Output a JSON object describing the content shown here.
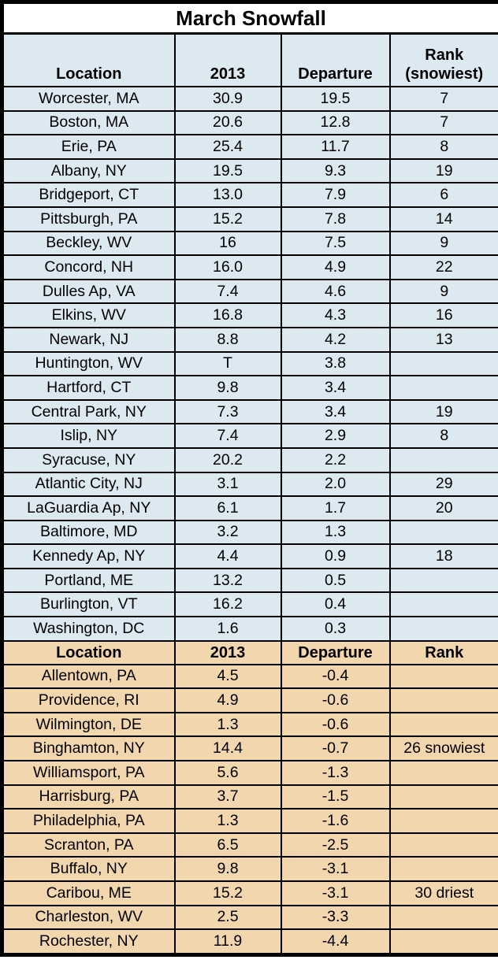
{
  "title": "March Snowfall",
  "colors": {
    "above_bg": "#dde9f1",
    "below_bg": "#f2d6ae",
    "border": "#000000",
    "text": "#000000",
    "title_bg": "#ffffff"
  },
  "chart_data": {
    "type": "table",
    "title": "March Snowfall",
    "header_above": {
      "location": "Location",
      "year": "2013",
      "departure": "Departure",
      "rank_line1": "Rank",
      "rank_line2": "(snowiest)"
    },
    "rows_above": [
      {
        "location": "Worcester, MA",
        "year": "30.9",
        "departure": "19.5",
        "rank": "7"
      },
      {
        "location": "Boston, MA",
        "year": "20.6",
        "departure": "12.8",
        "rank": "7"
      },
      {
        "location": "Erie, PA",
        "year": "25.4",
        "departure": "11.7",
        "rank": "8"
      },
      {
        "location": "Albany, NY",
        "year": "19.5",
        "departure": "9.3",
        "rank": "19"
      },
      {
        "location": "Bridgeport, CT",
        "year": "13.0",
        "departure": "7.9",
        "rank": "6"
      },
      {
        "location": "Pittsburgh, PA",
        "year": "15.2",
        "departure": "7.8",
        "rank": "14"
      },
      {
        "location": "Beckley, WV",
        "year": "16",
        "departure": "7.5",
        "rank": "9"
      },
      {
        "location": "Concord, NH",
        "year": "16.0",
        "departure": "4.9",
        "rank": "22"
      },
      {
        "location": "Dulles Ap, VA",
        "year": "7.4",
        "departure": "4.6",
        "rank": "9"
      },
      {
        "location": "Elkins, WV",
        "year": "16.8",
        "departure": "4.3",
        "rank": "16"
      },
      {
        "location": "Newark, NJ",
        "year": "8.8",
        "departure": "4.2",
        "rank": "13"
      },
      {
        "location": "Huntington, WV",
        "year": "T",
        "departure": "3.8",
        "rank": ""
      },
      {
        "location": "Hartford, CT",
        "year": "9.8",
        "departure": "3.4",
        "rank": ""
      },
      {
        "location": "Central Park, NY",
        "year": "7.3",
        "departure": "3.4",
        "rank": "19"
      },
      {
        "location": "Islip, NY",
        "year": "7.4",
        "departure": "2.9",
        "rank": "8"
      },
      {
        "location": "Syracuse, NY",
        "year": "20.2",
        "departure": "2.2",
        "rank": ""
      },
      {
        "location": "Atlantic City, NJ",
        "year": "3.1",
        "departure": "2.0",
        "rank": "29"
      },
      {
        "location": "LaGuardia Ap, NY",
        "year": "6.1",
        "departure": "1.7",
        "rank": "20"
      },
      {
        "location": "Baltimore, MD",
        "year": "3.2",
        "departure": "1.3",
        "rank": ""
      },
      {
        "location": "Kennedy Ap, NY",
        "year": "4.4",
        "departure": "0.9",
        "rank": "18"
      },
      {
        "location": "Portland, ME",
        "year": "13.2",
        "departure": "0.5",
        "rank": ""
      },
      {
        "location": "Burlington, VT",
        "year": "16.2",
        "departure": "0.4",
        "rank": ""
      },
      {
        "location": "Washington, DC",
        "year": "1.6",
        "departure": "0.3",
        "rank": ""
      }
    ],
    "header_below": {
      "location": "Location",
      "year": "2013",
      "departure": "Departure",
      "rank": "Rank"
    },
    "rows_below": [
      {
        "location": "Allentown, PA",
        "year": "4.5",
        "departure": "-0.4",
        "rank": ""
      },
      {
        "location": "Providence, RI",
        "year": "4.9",
        "departure": "-0.6",
        "rank": ""
      },
      {
        "location": "Wilmington, DE",
        "year": "1.3",
        "departure": "-0.6",
        "rank": ""
      },
      {
        "location": "Binghamton, NY",
        "year": "14.4",
        "departure": "-0.7",
        "rank": "26 snowiest"
      },
      {
        "location": "Williamsport, PA",
        "year": "5.6",
        "departure": "-1.3",
        "rank": ""
      },
      {
        "location": "Harrisburg, PA",
        "year": "3.7",
        "departure": "-1.5",
        "rank": ""
      },
      {
        "location": "Philadelphia, PA",
        "year": "1.3",
        "departure": "-1.6",
        "rank": ""
      },
      {
        "location": "Scranton, PA",
        "year": "6.5",
        "departure": "-2.5",
        "rank": ""
      },
      {
        "location": "Buffalo, NY",
        "year": "9.8",
        "departure": "-3.1",
        "rank": ""
      },
      {
        "location": "Caribou, ME",
        "year": "15.2",
        "departure": "-3.1",
        "rank": "30 driest"
      },
      {
        "location": "Charleston, WV",
        "year": "2.5",
        "departure": "-3.3",
        "rank": ""
      },
      {
        "location": "Rochester, NY",
        "year": "11.9",
        "departure": "-4.4",
        "rank": ""
      }
    ]
  }
}
